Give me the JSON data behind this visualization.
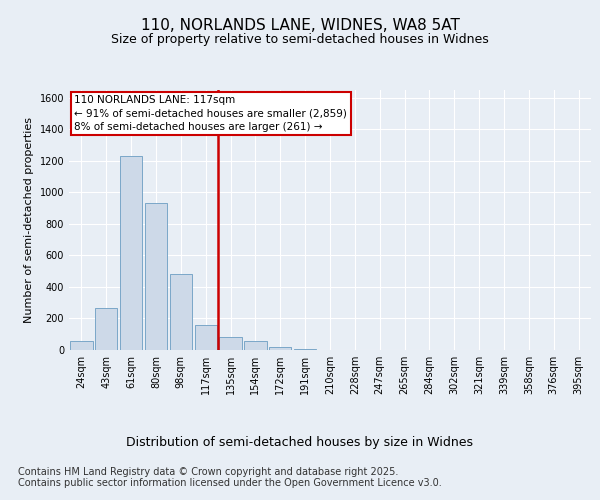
{
  "title": "110, NORLANDS LANE, WIDNES, WA8 5AT",
  "subtitle": "Size of property relative to semi-detached houses in Widnes",
  "xlabel": "Distribution of semi-detached houses by size in Widnes",
  "ylabel": "Number of semi-detached properties",
  "categories": [
    "24sqm",
    "43sqm",
    "61sqm",
    "80sqm",
    "98sqm",
    "117sqm",
    "135sqm",
    "154sqm",
    "172sqm",
    "191sqm",
    "210sqm",
    "228sqm",
    "247sqm",
    "265sqm",
    "284sqm",
    "302sqm",
    "321sqm",
    "339sqm",
    "358sqm",
    "376sqm",
    "395sqm"
  ],
  "values": [
    60,
    265,
    1230,
    930,
    480,
    160,
    80,
    60,
    20,
    5,
    3,
    0,
    0,
    0,
    0,
    0,
    0,
    0,
    0,
    0,
    0
  ],
  "bar_color": "#cdd9e8",
  "bar_edge_color": "#6b9dc2",
  "vline_color": "#cc0000",
  "vline_index": 5,
  "annotation_text": "110 NORLANDS LANE: 117sqm\n← 91% of semi-detached houses are smaller (2,859)\n8% of semi-detached houses are larger (261) →",
  "annotation_box_edgecolor": "#cc0000",
  "footer_text": "Contains HM Land Registry data © Crown copyright and database right 2025.\nContains public sector information licensed under the Open Government Licence v3.0.",
  "ylim": [
    0,
    1650
  ],
  "yticks": [
    0,
    200,
    400,
    600,
    800,
    1000,
    1200,
    1400,
    1600
  ],
  "background_color": "#e8eef5",
  "title_fontsize": 11,
  "subtitle_fontsize": 9,
  "ylabel_fontsize": 8,
  "xlabel_fontsize": 9,
  "tick_fontsize": 7,
  "footer_fontsize": 7,
  "annotation_fontsize": 7.5
}
